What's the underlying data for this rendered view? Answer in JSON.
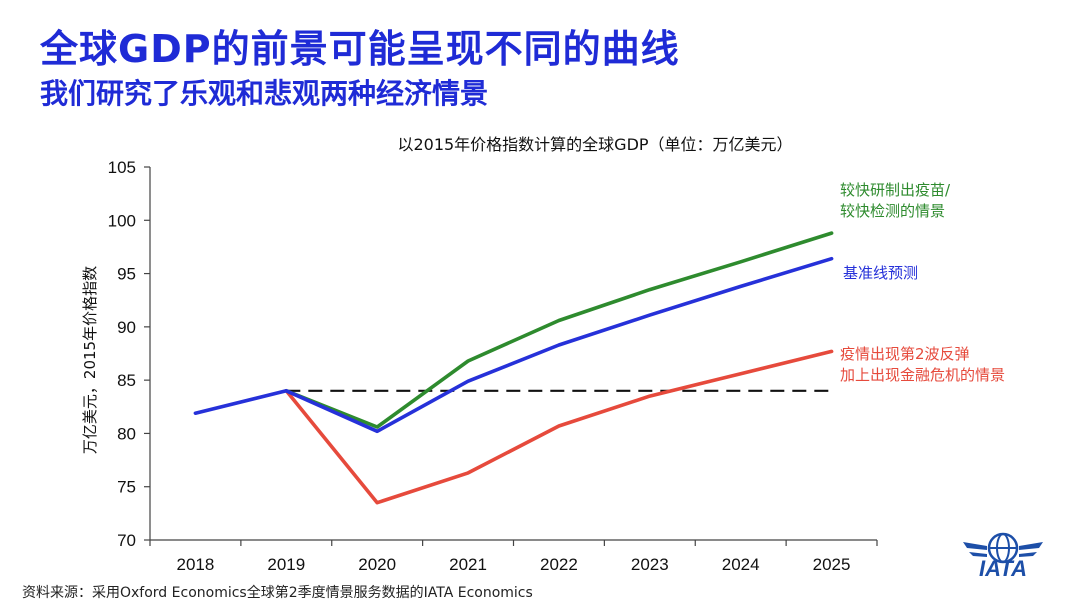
{
  "header": {
    "title": "全球GDP的前景可能呈现不同的曲线",
    "subtitle": "我们研究了乐观和悲观两种经济情景"
  },
  "footer": {
    "source": "资料来源：采用Oxford Economics全球第2季度情景服务数据的IATA Economics"
  },
  "logo": {
    "text": "IATA",
    "color": "#1d4fa8"
  },
  "chart_data": {
    "type": "line",
    "title": "以2015年价格指数计算的全球GDP（单位：万亿美元）",
    "ylabel": "万亿美元，2015年价格指数",
    "xlabel": "",
    "x": [
      "2018",
      "2019",
      "2020",
      "2021",
      "2022",
      "2023",
      "2024",
      "2025"
    ],
    "ylim": [
      70,
      105
    ],
    "yticks": [
      70,
      75,
      80,
      85,
      90,
      95,
      100,
      105
    ],
    "grid": false,
    "series": [
      {
        "name": "较快研制出疫苗/较快检测的情景",
        "label_lines": [
          "较快研制出疫苗/",
          "较快检测的情景"
        ],
        "color": "#2e8b2e",
        "values": [
          null,
          84.0,
          80.6,
          86.8,
          90.6,
          93.5,
          96.1,
          98.8
        ]
      },
      {
        "name": "基准线预测",
        "label_lines": [
          "基准线预测"
        ],
        "color": "#2631d9",
        "values": [
          81.9,
          84.0,
          80.2,
          84.9,
          88.3,
          91.1,
          93.8,
          96.4
        ]
      },
      {
        "name": "疫情出现第2波反弹加上出现金融危机的情景",
        "label_lines": [
          "疫情出现第2波反弹",
          "加上出现金融危机的情景"
        ],
        "color": "#e64a3c",
        "values": [
          null,
          84.0,
          73.5,
          76.3,
          80.7,
          83.5,
          85.6,
          87.7
        ]
      }
    ],
    "reference_line": {
      "value": 84.0,
      "from": "2019",
      "to": "2025",
      "style": "dashed",
      "color": "#111111"
    }
  }
}
